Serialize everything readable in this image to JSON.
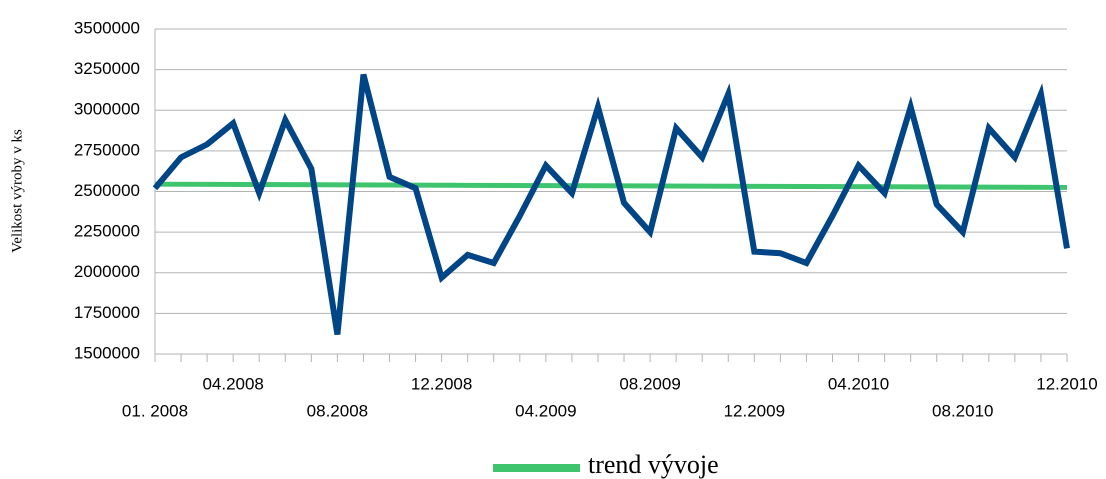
{
  "chart_data": {
    "type": "line",
    "ylabel": "Velikost výroby v ks",
    "categories": [
      "01. 2008",
      null,
      null,
      "04.2008",
      null,
      null,
      null,
      "08.2008",
      null,
      null,
      null,
      "12.2008",
      null,
      null,
      null,
      "04.2009",
      null,
      null,
      null,
      "08.2009",
      null,
      null,
      null,
      "12.2009",
      null,
      null,
      null,
      "04.2010",
      null,
      null,
      null,
      "08.2010",
      null,
      null,
      null,
      "12.2010"
    ],
    "series": [
      {
        "color": "#004586",
        "values": [
          2520000,
          2710000,
          2790000,
          2920000,
          2490000,
          2940000,
          2640000,
          1620000,
          3220000,
          2590000,
          2520000,
          1970000,
          2110000,
          2060000,
          2350000,
          2660000,
          2490000,
          3020000,
          2430000,
          2250000,
          2890000,
          2710000,
          3100000,
          2130000,
          2120000,
          2060000,
          2350000,
          2660000,
          2490000,
          3020000,
          2420000,
          2250000,
          2890000,
          2710000,
          3100000,
          2150000
        ]
      }
    ],
    "trend": {
      "name": "trend vývoje",
      "color": "#3ec46d",
      "start": 2545000,
      "end": 2525000
    },
    "ylim": [
      1500000,
      3500000
    ],
    "yticks": [
      1500000,
      1750000,
      2000000,
      2250000,
      2500000,
      2750000,
      3000000,
      3250000,
      3500000
    ],
    "grid": true,
    "legend": "bottom"
  }
}
